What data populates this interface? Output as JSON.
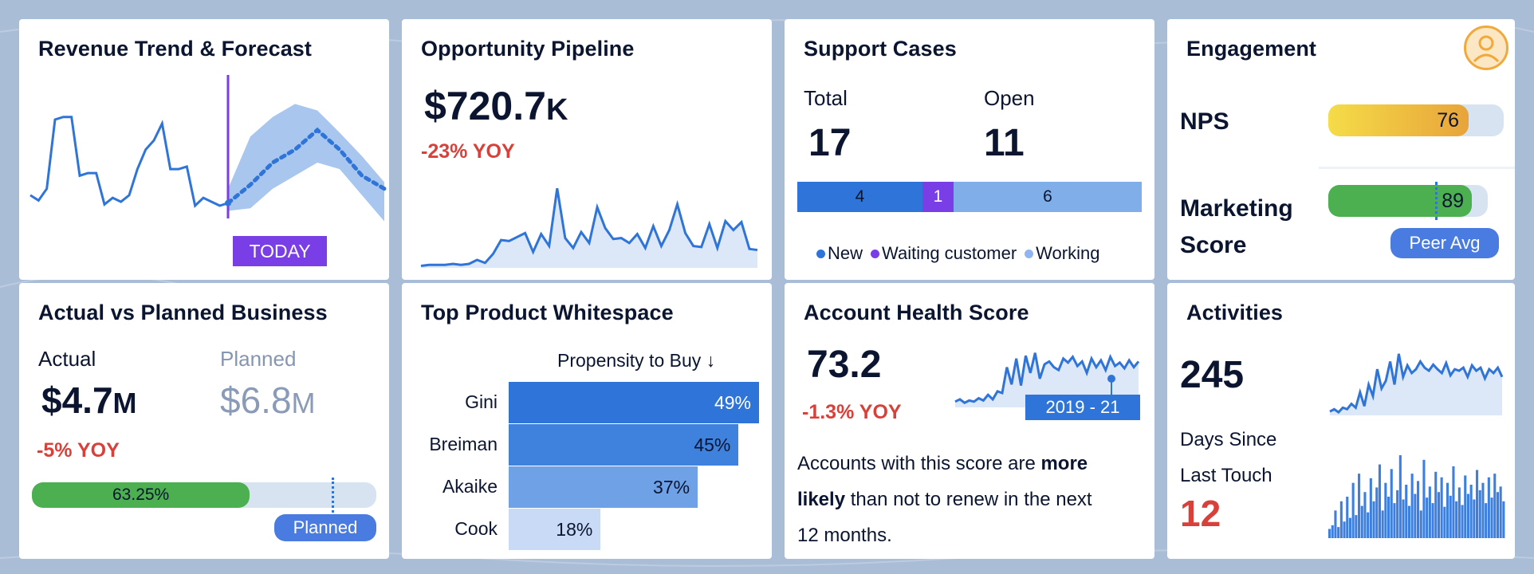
{
  "colors": {
    "background": "#a9bdd6",
    "blue": "#2f74d8",
    "light_blue": "#cfdff5",
    "purple": "#7a3ee6",
    "red": "#d9403a",
    "green": "#4caf50",
    "nps_gold": "#f0c542"
  },
  "revenue": {
    "title": "Revenue Trend & Forecast",
    "today_label": "TODAY",
    "chart_data": {
      "type": "line",
      "title": "Revenue Trend & Forecast",
      "actual": [
        30,
        26,
        35,
        88,
        90,
        90,
        45,
        47,
        47,
        23,
        28,
        25,
        30,
        50,
        65,
        72,
        85,
        50,
        50,
        52,
        22,
        28,
        25,
        22,
        24
      ],
      "forecast": [
        24,
        38,
        55,
        65,
        80,
        65,
        45,
        35
      ],
      "forecast_band_upper": [
        35,
        75,
        90,
        100,
        95,
        78,
        60,
        40
      ],
      "forecast_band_lower": [
        18,
        20,
        35,
        45,
        55,
        50,
        30,
        10
      ]
    }
  },
  "pipeline": {
    "title": "Opportunity Pipeline",
    "value": "$720.7",
    "value_unit": "K",
    "yoy": "-23% YOY",
    "chart_data": {
      "type": "area",
      "values": [
        2,
        3,
        3,
        3,
        4,
        3,
        4,
        8,
        5,
        14,
        28,
        27,
        31,
        35,
        16,
        34,
        22,
        80,
        30,
        20,
        36,
        25,
        61,
        40,
        29,
        30,
        25,
        34,
        20,
        42,
        22,
        38,
        64,
        35,
        22,
        21,
        44,
        20,
        47,
        38,
        46,
        19,
        18
      ]
    }
  },
  "support": {
    "title": "Support Cases",
    "total_label": "Total",
    "total_value": "17",
    "open_label": "Open",
    "open_value": "11",
    "chart_data": {
      "type": "bar",
      "categories": [
        "New",
        "Waiting customer",
        "Working"
      ],
      "values": [
        4,
        1,
        6
      ]
    },
    "segments": [
      {
        "label": "4",
        "color": "#2f74d8"
      },
      {
        "label": "1",
        "color": "#7a3ee6"
      },
      {
        "label": "6",
        "color": "#7faee8"
      }
    ],
    "legend": [
      {
        "label": "New",
        "color": "#2f74d8"
      },
      {
        "label": "Waiting customer",
        "color": "#7a3ee6"
      },
      {
        "label": "Working",
        "color": "#8fb6ee"
      }
    ]
  },
  "engagement": {
    "title": "Engagement",
    "nps_label": "NPS",
    "nps_value": "76",
    "nps_fill_fraction": 0.8,
    "marketing_label_1": "Marketing",
    "marketing_label_2": "Score",
    "marketing_value": "89",
    "marketing_fill_fraction": 0.9,
    "peer_avg_label": "Peer Avg",
    "peer_avg_fraction": 0.67,
    "avatar_icon": "user-avatar-icon"
  },
  "actual_planned": {
    "title": "Actual vs Planned Business",
    "actual_label": "Actual",
    "actual_value": "$4.7",
    "actual_unit": "M",
    "planned_label": "Planned",
    "planned_value": "$6.8",
    "planned_unit": "M",
    "yoy": "-5% YOY",
    "progress_label": "63.25%",
    "progress_fraction": 0.6325,
    "planned_marker_fraction": 0.87,
    "planned_pill": "Planned"
  },
  "whitespace": {
    "title": "Top Product Whitespace",
    "column_header": "Propensity to Buy ↓",
    "chart_data": {
      "type": "bar",
      "categories": [
        "Gini",
        "Breiman",
        "Akaike",
        "Cook"
      ],
      "values": [
        49,
        45,
        37,
        18
      ],
      "labels": [
        "49%",
        "45%",
        "37%",
        "18%"
      ],
      "xlabel": "Propensity to Buy ↓"
    }
  },
  "health": {
    "title": "Account Health Score",
    "score": "73.2",
    "yoy": "-1.3% YOY",
    "range_label": "2019 - 21",
    "text_1": "Accounts with this score are ",
    "text_bold_1": "more",
    "text_bold_2": "likely",
    "text_2": " than not to renew in the next",
    "text_3": "12  months.",
    "chart_data": {
      "type": "area",
      "values": [
        10,
        14,
        8,
        12,
        10,
        16,
        12,
        22,
        14,
        28,
        25,
        70,
        40,
        85,
        38,
        90,
        60,
        95,
        50,
        75,
        80,
        70,
        65,
        85,
        78,
        88,
        72,
        80,
        60,
        85,
        70,
        82,
        65,
        88,
        72,
        78,
        68,
        82,
        70,
        80
      ]
    }
  },
  "activities": {
    "title": "Activities",
    "count": "245",
    "days_label_1": "Days Since",
    "days_label_2": "Last Touch",
    "days_value": "12",
    "chart_data": {
      "type": "area",
      "values": [
        5,
        8,
        4,
        10,
        8,
        15,
        10,
        30,
        12,
        40,
        25,
        60,
        35,
        45,
        70,
        40,
        80,
        50,
        65,
        55,
        60,
        70,
        62,
        58,
        66,
        60,
        55,
        68,
        52,
        60,
        58,
        62,
        50,
        65,
        58,
        62,
        48,
        60,
        55,
        62,
        50
      ]
    },
    "bars_data": {
      "type": "bar",
      "values": [
        10,
        14,
        30,
        12,
        40,
        18,
        45,
        22,
        60,
        25,
        70,
        35,
        50,
        28,
        65,
        40,
        55,
        80,
        30,
        60,
        45,
        75,
        38,
        52,
        90,
        42,
        58,
        35,
        70,
        48,
        62,
        30,
        85,
        44,
        56,
        38,
        72,
        50,
        66,
        34,
        60,
        46,
        78,
        40,
        55,
        36,
        68,
        48,
        58,
        42,
        74,
        52,
        60,
        38,
        66,
        44,
        70,
        50,
        56,
        40
      ]
    }
  }
}
